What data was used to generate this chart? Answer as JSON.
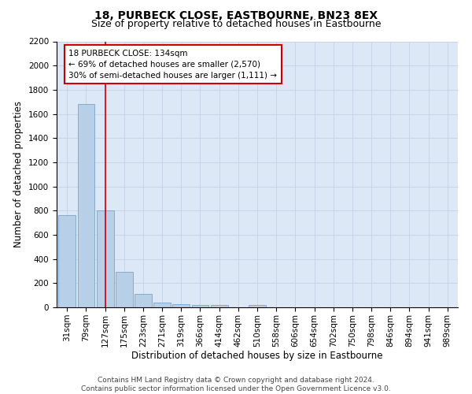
{
  "title": "18, PURBECK CLOSE, EASTBOURNE, BN23 8EX",
  "subtitle": "Size of property relative to detached houses in Eastbourne",
  "xlabel": "Distribution of detached houses by size in Eastbourne",
  "ylabel": "Number of detached properties",
  "categories": [
    "31sqm",
    "79sqm",
    "127sqm",
    "175sqm",
    "223sqm",
    "271sqm",
    "319sqm",
    "366sqm",
    "414sqm",
    "462sqm",
    "510sqm",
    "558sqm",
    "606sqm",
    "654sqm",
    "702sqm",
    "750sqm",
    "798sqm",
    "846sqm",
    "894sqm",
    "941sqm",
    "989sqm"
  ],
  "values": [
    760,
    1680,
    800,
    295,
    110,
    38,
    27,
    20,
    18,
    0,
    20,
    0,
    0,
    0,
    0,
    0,
    0,
    0,
    0,
    0,
    0
  ],
  "bar_color": "#b8cfe8",
  "bar_edge_color": "#7aa3cc",
  "vline_x_index": 2,
  "vline_color": "#cc0000",
  "annotation_text": "18 PURBECK CLOSE: 134sqm\n← 69% of detached houses are smaller (2,570)\n30% of semi-detached houses are larger (1,111) →",
  "annotation_box_color": "#ffffff",
  "annotation_box_edge": "#cc0000",
  "ylim": [
    0,
    2200
  ],
  "yticks": [
    0,
    200,
    400,
    600,
    800,
    1000,
    1200,
    1400,
    1600,
    1800,
    2000,
    2200
  ],
  "grid_color": "#c8d4e8",
  "bg_color": "#dce8f5",
  "footer": "Contains HM Land Registry data © Crown copyright and database right 2024.\nContains public sector information licensed under the Open Government Licence v3.0.",
  "title_fontsize": 10,
  "subtitle_fontsize": 9,
  "xlabel_fontsize": 8.5,
  "ylabel_fontsize": 8.5,
  "tick_fontsize": 7.5,
  "annot_fontsize": 7.5,
  "footer_fontsize": 6.5
}
